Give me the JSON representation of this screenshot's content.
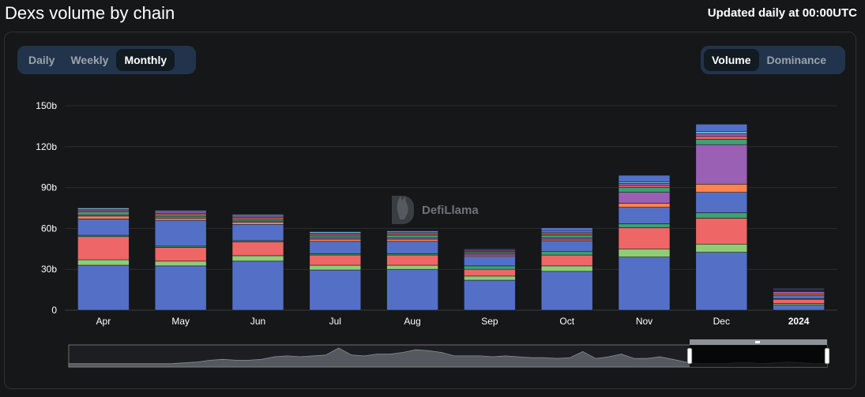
{
  "header": {
    "title": "Dexs volume by chain",
    "updated": "Updated daily at 00:00UTC"
  },
  "toggles": {
    "period": [
      "Daily",
      "Weekly",
      "Monthly"
    ],
    "period_active": "Monthly",
    "metric": [
      "Volume",
      "Dominance"
    ],
    "metric_active": "Volume"
  },
  "watermark": "DefiLlama",
  "colors": {
    "background": "#161719",
    "grid": "#2a2d31",
    "navigator_fill": "#55585e"
  },
  "chart_data": {
    "type": "bar",
    "stacked": true,
    "categories": [
      "Apr",
      "May",
      "Jun",
      "Jul",
      "Aug",
      "Sep",
      "Oct",
      "Nov",
      "Dec",
      "2024"
    ],
    "y_ticks": [
      "0",
      "30b",
      "60b",
      "90b",
      "120b",
      "150b"
    ],
    "ylim": [
      0,
      150
    ],
    "unit": "b",
    "grid": true,
    "series": [
      {
        "color": "#5470c6",
        "values": [
          33,
          32.5,
          36,
          29.5,
          30,
          22,
          28.5,
          39,
          42.5,
          4
        ]
      },
      {
        "color": "#91cc75",
        "values": [
          4,
          3.5,
          4,
          3.5,
          3,
          3,
          4,
          6,
          6,
          1
        ]
      },
      {
        "color": "#ee6666",
        "values": [
          17,
          10,
          10,
          7.5,
          7.5,
          5,
          8,
          15.5,
          19,
          3
        ]
      },
      {
        "color": "#3ba272",
        "values": [
          1,
          1,
          1,
          1,
          1,
          2.5,
          2.5,
          3,
          4,
          0.5
        ]
      },
      {
        "color": "#5470c6",
        "values": [
          12,
          19,
          12,
          9,
          9,
          7,
          8,
          12,
          15,
          2.5
        ]
      },
      {
        "color": "#fc8452",
        "values": [
          2,
          1.5,
          1.5,
          1.5,
          1.5,
          1,
          1,
          3,
          6,
          1
        ]
      },
      {
        "color": "#9a60b4",
        "values": [
          1,
          1,
          1,
          1,
          1,
          1,
          1,
          8,
          29,
          1.5
        ]
      },
      {
        "color": "#3ba272",
        "values": [
          2,
          1.5,
          1.5,
          1.5,
          2,
          1,
          2,
          3.5,
          4,
          0.5
        ]
      },
      {
        "color": "#ee6666",
        "values": [
          1,
          1,
          1,
          1,
          1,
          0.5,
          1,
          1.5,
          2,
          0.5
        ]
      },
      {
        "color": "#9a60b4",
        "values": [
          1,
          1,
          1,
          1,
          1,
          1,
          1,
          1.5,
          2,
          0.5
        ]
      },
      {
        "color": "#73c0de",
        "values": [
          1,
          1,
          1,
          1,
          1,
          0.5,
          1,
          1,
          1.5,
          0.5
        ]
      },
      {
        "color": "#5470c6",
        "values": [
          0.5,
          0.5,
          0.5,
          0.5,
          0.5,
          0.5,
          2.5,
          5,
          5.5,
          0.5
        ]
      }
    ],
    "navigator_values": [
      1,
      1,
      1,
      1,
      1,
      1,
      1,
      1,
      1,
      1.5,
      2,
      3,
      3.5,
      3,
      3,
      3.5,
      5,
      5.5,
      5,
      5.5,
      6,
      10,
      6,
      5.5,
      6.5,
      6.5,
      7.5,
      9,
      8.5,
      7.5,
      5.5,
      5.5,
      5.5,
      5,
      5.5,
      5,
      4.5,
      4.5,
      4,
      4.5,
      8,
      4,
      5,
      6.5,
      4,
      4,
      5,
      3.5,
      2,
      1,
      1,
      1,
      1.5,
      1.5,
      1,
      1.5,
      2,
      1.5,
      1,
      1
    ]
  }
}
